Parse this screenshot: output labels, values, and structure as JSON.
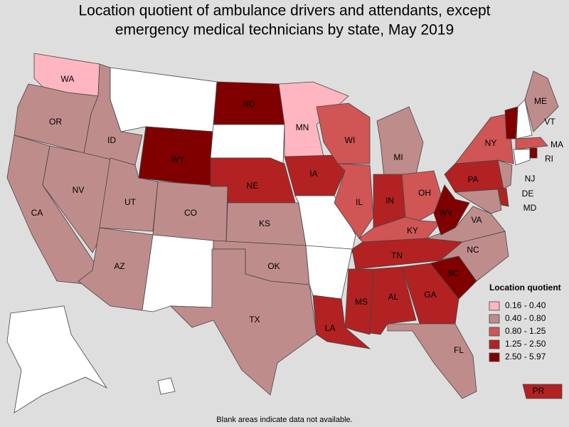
{
  "title": [
    "Location quotient of ambulance drivers and attendants, except",
    "emergency medical technicians by state, May 2019"
  ],
  "legend": {
    "title": "Location quotient",
    "items": [
      {
        "label": "0.16 - 0.40",
        "color": "#ffb6c1"
      },
      {
        "label": "0.40 - 0.80",
        "color": "#bf8c8c"
      },
      {
        "label": "0.80 - 1.25",
        "color": "#d05555"
      },
      {
        "label": "1.25 - 2.50",
        "color": "#b22222"
      },
      {
        "label": "2.50 - 5.97",
        "color": "#800000"
      }
    ]
  },
  "blank_color": "#ffffff",
  "states": [
    {
      "label": "WA",
      "class": 0
    },
    {
      "label": "OR",
      "class": 1
    },
    {
      "label": "CA",
      "class": 1
    },
    {
      "label": "NV",
      "class": 1
    },
    {
      "label": "ID",
      "class": 1
    },
    {
      "label": null,
      "class": null
    },
    {
      "label": "WY",
      "class": 4
    },
    {
      "label": "UT",
      "class": 1
    },
    {
      "label": "CO",
      "class": 1
    },
    {
      "label": "AZ",
      "class": 1
    },
    {
      "label": null,
      "class": null
    },
    {
      "label": "ND",
      "class": 4
    },
    {
      "label": null,
      "class": null
    },
    {
      "label": "NE",
      "class": 3
    },
    {
      "label": "KS",
      "class": 1
    },
    {
      "label": "OK",
      "class": 1
    },
    {
      "label": "TX",
      "class": 1
    },
    {
      "label": "MN",
      "class": 0
    },
    {
      "label": "IA",
      "class": 3
    },
    {
      "label": null,
      "class": null
    },
    {
      "label": null,
      "class": null
    },
    {
      "label": "LA",
      "class": 3
    },
    {
      "label": "WI",
      "class": 2
    },
    {
      "label": "IL",
      "class": 2
    },
    {
      "label": "MI",
      "class": 1
    },
    {
      "label": "IN",
      "class": 3
    },
    {
      "label": "OH",
      "class": 2
    },
    {
      "label": "KY",
      "class": 2
    },
    {
      "label": "TN",
      "class": 3
    },
    {
      "label": "MS",
      "class": 3
    },
    {
      "label": "AL",
      "class": 3
    },
    {
      "label": "GA",
      "class": 3
    },
    {
      "label": "FL",
      "class": 1
    },
    {
      "label": "SC",
      "class": 4
    },
    {
      "label": "NC",
      "class": 1
    },
    {
      "label": "VA",
      "class": 1
    },
    {
      "label": "WV",
      "class": 4
    },
    {
      "label": "PA",
      "class": 3
    },
    {
      "label": "NY",
      "class": 2
    },
    {
      "label": "NJ",
      "class": 1
    },
    {
      "label": "DE",
      "class": 3
    },
    {
      "label": "MD",
      "class": 1
    },
    {
      "label": "VT",
      "class": 4
    },
    {
      "label": null,
      "class": null
    },
    {
      "label": "ME",
      "class": 1
    },
    {
      "label": "MA",
      "class": 2
    },
    {
      "label": null,
      "class": null
    },
    {
      "label": "RI",
      "class": 4
    },
    {
      "label": null,
      "class": null
    },
    {
      "label": null,
      "class": null
    },
    {
      "label": "PR",
      "class": 3
    }
  ],
  "footnote": "Blank areas indicate data not available."
}
